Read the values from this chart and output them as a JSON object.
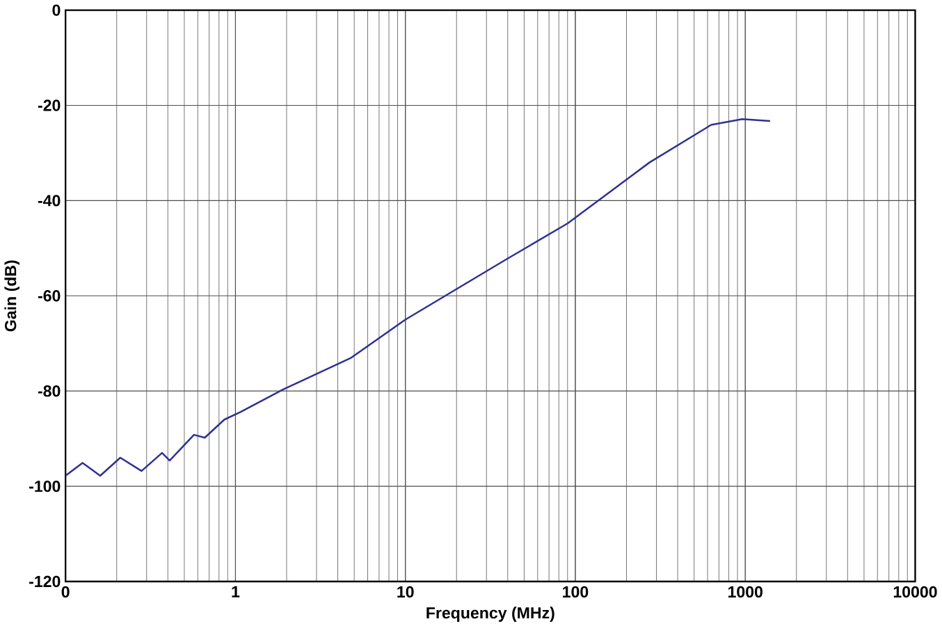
{
  "chart_data": {
    "type": "line",
    "xlabel": "Frequency  (MHz)",
    "ylabel": "Gain  (dB)",
    "log": "x",
    "xlim": [
      0.1,
      10000
    ],
    "ylim": [
      -120,
      0
    ],
    "xticks": [
      {
        "value": 0.1,
        "label": "0"
      },
      1,
      10,
      100,
      1000,
      10000
    ],
    "yticks": [
      -120,
      -100,
      -80,
      -60,
      -40,
      -20,
      0
    ],
    "grid": true,
    "series": [
      {
        "color": "#2e3192",
        "x": [
          0.1,
          0.126,
          0.16,
          0.21,
          0.28,
          0.37,
          0.41,
          0.57,
          0.66,
          0.86,
          1.07,
          1.9,
          4.8,
          10,
          39,
          90,
          273,
          630,
          960,
          1400
        ],
        "values": [
          -97.8,
          -95.1,
          -97.8,
          -94,
          -96.8,
          -93,
          -94.6,
          -89.2,
          -89.8,
          -86,
          -84.4,
          -79.7,
          -73,
          -65,
          -52.4,
          -44.8,
          -32,
          -24.1,
          -22.9,
          -23.3
        ]
      }
    ]
  }
}
